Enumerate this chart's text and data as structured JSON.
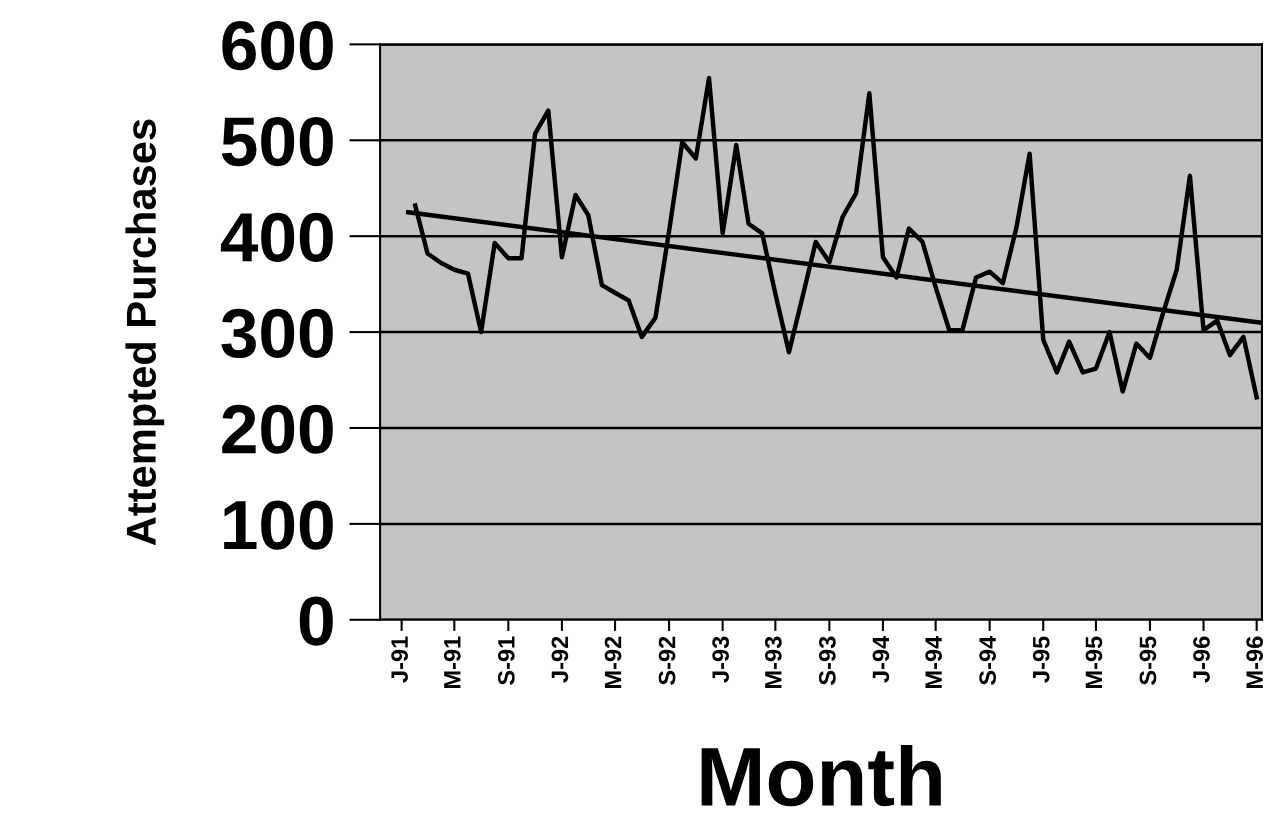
{
  "chart_data": {
    "type": "line",
    "xlabel": "Month",
    "ylabel": "Attempted Purchases",
    "xlim": [
      "1990-11-13",
      "1996-05-13"
    ],
    "ylim": [
      0,
      600
    ],
    "xticks": [
      {
        "value": "1991-01",
        "label": "J-91"
      },
      {
        "value": "1991-05",
        "label": "M-91"
      },
      {
        "value": "1991-09",
        "label": "S-91"
      },
      {
        "value": "1992-01",
        "label": "J-92"
      },
      {
        "value": "1992-05",
        "label": "M-92"
      },
      {
        "value": "1992-09",
        "label": "S-92"
      },
      {
        "value": "1993-01",
        "label": "J-93"
      },
      {
        "value": "1993-05",
        "label": "M-93"
      },
      {
        "value": "1993-09",
        "label": "S-93"
      },
      {
        "value": "1994-01",
        "label": "J-94"
      },
      {
        "value": "1994-05",
        "label": "M-94"
      },
      {
        "value": "1994-09",
        "label": "S-94"
      },
      {
        "value": "1995-01",
        "label": "J-95"
      },
      {
        "value": "1995-05",
        "label": "M-95"
      },
      {
        "value": "1995-09",
        "label": "S-95"
      },
      {
        "value": "1996-01",
        "label": "J-96"
      },
      {
        "value": "1996-05",
        "label": "M-96"
      }
    ],
    "yticks": [
      0,
      100,
      200,
      300,
      400,
      500,
      600
    ],
    "grid": "y",
    "legend": false,
    "marker": "none",
    "line_style": "solid",
    "series": [
      {
        "color": "#000000",
        "x": [
          "1991-02",
          "1991-03",
          "1991-04",
          "1991-05",
          "1991-06",
          "1991-07",
          "1991-08",
          "1991-09",
          "1991-10",
          "1991-11",
          "1991-12",
          "1992-01",
          "1992-02",
          "1992-03",
          "1992-04",
          "1992-05",
          "1992-06",
          "1992-07",
          "1992-08",
          "1992-09",
          "1992-10",
          "1992-11",
          "1992-12",
          "1993-01",
          "1993-02",
          "1993-03",
          "1993-04",
          "1993-05",
          "1993-06",
          "1993-07",
          "1993-08",
          "1993-09",
          "1993-10",
          "1993-11",
          "1993-12",
          "1994-01",
          "1994-02",
          "1994-03",
          "1994-04",
          "1994-05",
          "1994-06",
          "1994-07",
          "1994-08",
          "1994-09",
          "1994-10",
          "1994-11",
          "1994-12",
          "1995-01",
          "1995-02",
          "1995-03",
          "1995-04",
          "1995-05",
          "1995-06",
          "1995-07",
          "1995-08",
          "1995-09",
          "1995-10",
          "1995-11",
          "1995-12",
          "1996-01",
          "1996-02",
          "1996-03",
          "1996-04",
          "1996-05"
        ],
        "values": [
          432,
          382,
          372,
          365,
          361,
          300,
          393,
          377,
          377,
          507,
          531,
          378,
          443,
          422,
          349,
          341,
          333,
          295,
          315,
          405,
          498,
          481,
          565,
          403,
          495,
          413,
          403,
          340,
          279,
          335,
          394,
          373,
          420,
          445,
          549,
          378,
          357,
          408,
          394,
          347,
          302,
          302,
          357,
          363,
          351,
          409,
          486,
          292,
          258,
          290,
          258,
          262,
          300,
          238,
          288,
          273,
          320,
          365,
          463,
          302,
          312,
          276,
          295,
          232
        ]
      },
      {
        "color": "#000000",
        "type": "line",
        "x": [
          "1991-01-16",
          "1996-05-07"
        ],
        "values": [
          425,
          310
        ]
      }
    ]
  }
}
